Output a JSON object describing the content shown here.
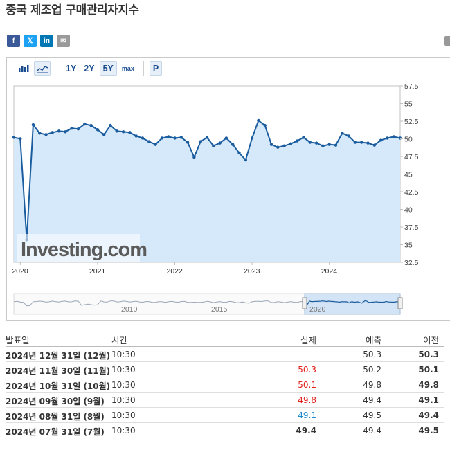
{
  "page": {
    "title": "중국 제조업 구매관리자지수"
  },
  "share": {
    "buttons": [
      {
        "name": "facebook",
        "glyph": "f",
        "color": "#3b5998"
      },
      {
        "name": "x",
        "glyph": "𝕏",
        "color": "#1da1f2"
      },
      {
        "name": "linkedin",
        "glyph": "in",
        "color": "#0077b5"
      },
      {
        "name": "email",
        "glyph": "✉",
        "color": "#9a9a9a"
      }
    ]
  },
  "toolbar": {
    "ranges": [
      "1Y",
      "2Y",
      "5Y",
      "max"
    ],
    "active_range": "5Y",
    "p_label": "P"
  },
  "chart_data": {
    "type": "line",
    "y_ticks": [
      "57.5",
      "55",
      "52.5",
      "50",
      "47.5",
      "45",
      "42.5",
      "40",
      "37.5",
      "35",
      "32.5"
    ],
    "ylim": [
      32.5,
      57.5
    ],
    "x_labels": [
      "2020",
      "2021",
      "2022",
      "2023",
      "2024"
    ],
    "watermark": "Investing.com",
    "navigator_labels": [
      "2010",
      "2015",
      "2020"
    ],
    "series": [
      {
        "x": [
          "2019-12",
          "2020-01",
          "2020-02",
          "2020-03",
          "2020-04",
          "2020-05",
          "2020-06",
          "2020-07",
          "2020-08",
          "2020-09",
          "2020-10",
          "2020-11",
          "2020-12",
          "2021-01",
          "2021-02",
          "2021-03",
          "2021-04",
          "2021-05",
          "2021-06",
          "2021-07",
          "2021-08",
          "2021-09",
          "2021-10",
          "2021-11",
          "2021-12",
          "2022-01",
          "2022-02",
          "2022-03",
          "2022-04",
          "2022-05",
          "2022-06",
          "2022-07",
          "2022-08",
          "2022-09",
          "2022-10",
          "2022-11",
          "2022-12",
          "2023-01",
          "2023-02",
          "2023-03",
          "2023-04",
          "2023-05",
          "2023-06",
          "2023-07",
          "2023-08",
          "2023-09",
          "2023-10",
          "2023-11",
          "2023-12",
          "2024-01",
          "2024-02",
          "2024-03",
          "2024-04",
          "2024-05",
          "2024-06",
          "2024-07",
          "2024-08",
          "2024-09",
          "2024-10",
          "2024-11",
          "2024-12"
        ],
        "values": [
          50.2,
          50.0,
          35.7,
          52.0,
          50.8,
          50.6,
          50.9,
          51.1,
          51.0,
          51.5,
          51.4,
          52.1,
          51.9,
          51.3,
          50.6,
          51.9,
          51.1,
          51.0,
          50.9,
          50.4,
          50.1,
          49.6,
          49.2,
          50.1,
          50.3,
          50.1,
          50.2,
          49.5,
          47.4,
          49.6,
          50.2,
          49.0,
          49.4,
          50.1,
          49.2,
          48.0,
          47.0,
          50.1,
          52.6,
          51.9,
          49.2,
          48.8,
          49.0,
          49.3,
          49.7,
          50.2,
          49.5,
          49.4,
          49.0,
          49.2,
          49.1,
          50.8,
          50.4,
          49.5,
          49.5,
          49.4,
          49.1,
          49.8,
          50.1,
          50.3,
          50.1
        ]
      }
    ],
    "colors": {
      "line": "#1a5c9e",
      "fill": "#d6e9fb",
      "marker": "#1a5c9e"
    }
  },
  "table": {
    "headers": {
      "date": "발표일",
      "time": "시간",
      "actual": "실제",
      "forecast": "예측",
      "previous": "이전"
    },
    "rows": [
      {
        "date": "2024년 12월 31일 (12월)",
        "time": "10:30",
        "actual": "",
        "actual_state": "neutral",
        "forecast": "50.3",
        "previous": "50.3"
      },
      {
        "date": "2024년 11월 30일 (11월)",
        "time": "10:30",
        "actual": "50.3",
        "actual_state": "up",
        "forecast": "50.2",
        "previous": "50.1"
      },
      {
        "date": "2024년 10월 31일 (10월)",
        "time": "10:30",
        "actual": "50.1",
        "actual_state": "up",
        "forecast": "49.8",
        "previous": "49.8"
      },
      {
        "date": "2024년 09월 30일 (9월)",
        "time": "10:30",
        "actual": "49.8",
        "actual_state": "up",
        "forecast": "49.4",
        "previous": "49.1"
      },
      {
        "date": "2024년 08월 31일 (8월)",
        "time": "10:30",
        "actual": "49.1",
        "actual_state": "down",
        "forecast": "49.5",
        "previous": "49.4"
      },
      {
        "date": "2024년 07월 31일 (7월)",
        "time": "10:30",
        "actual": "49.4",
        "actual_state": "neutral",
        "forecast": "49.4",
        "previous": "49.5"
      }
    ]
  }
}
